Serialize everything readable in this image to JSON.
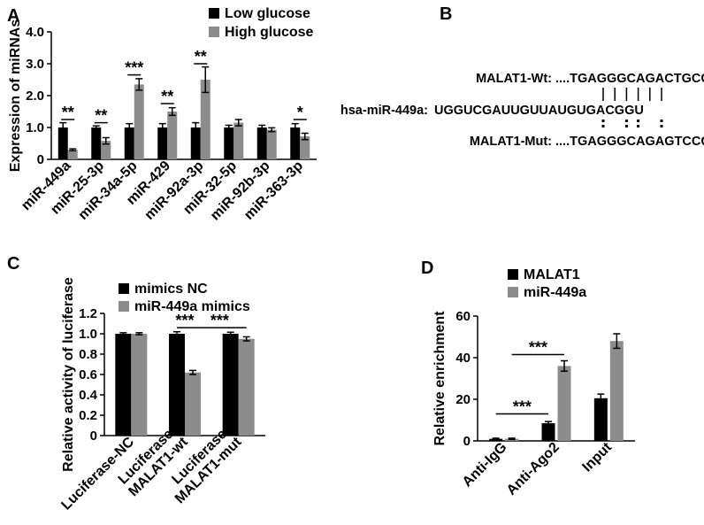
{
  "panels": [
    {
      "id": "A",
      "label": "A"
    },
    {
      "id": "B",
      "label": "B"
    },
    {
      "id": "C",
      "label": "C"
    },
    {
      "id": "D",
      "label": "D"
    }
  ],
  "colors": {
    "series1": "#000000",
    "series2": "#8c8c8c",
    "text": "#000000"
  },
  "chart_data": [
    {
      "panel": "A",
      "type": "bar",
      "ylabel": "Expression of miRNAs",
      "xlabel": "",
      "ylim": [
        0,
        4.0
      ],
      "yticks": [
        "0",
        "1.0",
        "2.0",
        "3.0",
        "4.0"
      ],
      "ytick_values": [
        0,
        1,
        2,
        3,
        4
      ],
      "categories": [
        "miR-449a",
        "miR-25-3p",
        "miR-34a-5p",
        "miR-429",
        "miR-92a-3p",
        "miR-32-5p",
        "miR-92b-3p",
        "miR-363-3p"
      ],
      "series": [
        {
          "name": "Low glucose",
          "values": [
            1.0,
            1.0,
            1.0,
            1.0,
            1.0,
            1.0,
            1.0,
            1.0
          ],
          "errors": [
            0.15,
            0.05,
            0.12,
            0.12,
            0.15,
            0.07,
            0.07,
            0.12
          ]
        },
        {
          "name": "High glucose",
          "values": [
            0.3,
            0.58,
            2.35,
            1.5,
            2.5,
            1.15,
            0.93,
            0.72
          ],
          "errors": [
            0.03,
            0.1,
            0.18,
            0.12,
            0.4,
            0.1,
            0.06,
            0.1
          ]
        }
      ],
      "annotations": [
        {
          "text": "**",
          "category_index": 0,
          "y": 1.25
        },
        {
          "text": "**",
          "category_index": 1,
          "y": 1.15
        },
        {
          "text": "***",
          "category_index": 2,
          "y": 2.65
        },
        {
          "text": "**",
          "category_index": 3,
          "y": 1.75
        },
        {
          "text": "**",
          "category_index": 4,
          "y": 3.0
        },
        {
          "text": "*",
          "category_index": 7,
          "y": 1.25
        }
      ],
      "legend": "top-right"
    },
    {
      "panel": "C",
      "type": "bar",
      "ylabel": "Relative activity of luciferase",
      "xlabel": "",
      "ylim": [
        0,
        1.2
      ],
      "yticks": [
        "0",
        "0.2",
        "0.4",
        "0.6",
        "0.8",
        "1.0",
        "1.2"
      ],
      "ytick_values": [
        0,
        0.2,
        0.4,
        0.6,
        0.8,
        1.0,
        1.2
      ],
      "categories": [
        "Luciferase-NC",
        "Luciferase-\nMALAT1-wt",
        "Luciferase-\nMALAT1-mut"
      ],
      "series": [
        {
          "name": "mimics NC",
          "values": [
            1.0,
            1.0,
            1.0
          ],
          "errors": [
            0.01,
            0.02,
            0.015
          ]
        },
        {
          "name": "miR-449a  mimics",
          "values": [
            1.0,
            0.62,
            0.95
          ],
          "errors": [
            0.01,
            0.02,
            0.02
          ]
        }
      ],
      "annotations": [
        {
          "text": "***",
          "between": [
            [
              1,
              0
            ],
            [
              1,
              1
            ]
          ],
          "y": 1.06
        },
        {
          "text": "***",
          "between": [
            [
              1,
              1
            ],
            [
              2,
              1
            ]
          ],
          "y": 1.06
        }
      ],
      "legend": "top"
    },
    {
      "panel": "D",
      "type": "bar",
      "ylabel": "Relative  enrichment",
      "xlabel": "",
      "ylim": [
        0,
        60
      ],
      "yticks": [
        "0",
        "20",
        "40",
        "60"
      ],
      "ytick_values": [
        0,
        20,
        40,
        60
      ],
      "categories": [
        "Anti-IgG",
        "Anti-Ago2",
        "Input"
      ],
      "series": [
        {
          "name": "MALAT1",
          "values": [
            1.0,
            8.5,
            20.5
          ],
          "errors": [
            0.3,
            0.8,
            2.0
          ]
        },
        {
          "name": "miR-449a",
          "values": [
            1.0,
            36.0,
            48.0
          ],
          "errors": [
            0.3,
            2.5,
            3.5
          ]
        }
      ],
      "annotations": [
        {
          "text": "***",
          "between": [
            [
              0,
              0
            ],
            [
              1,
              0
            ]
          ],
          "y": 13.0
        },
        {
          "text": "***",
          "between": [
            [
              0,
              1
            ],
            [
              1,
              1
            ]
          ],
          "y": 41.5
        }
      ],
      "legend": "top-left"
    }
  ],
  "sequences": [
    {
      "label": "MALAT1-Wt:",
      "seq": "....TGAGGGCAGACTGCCA...."
    },
    {
      "label": "hsa-miR-449a:",
      "seq": "UGGUCGAUUGUUAUGUGACGGU"
    },
    {
      "label": "MALAT1-Mut:",
      "seq": "....TGAGGGCAGAGTCCGA...."
    }
  ]
}
